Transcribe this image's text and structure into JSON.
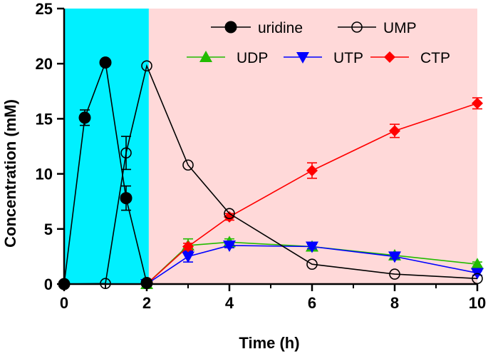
{
  "chart_data": {
    "type": "line",
    "title": "",
    "xlabel": "Time (h)",
    "ylabel": "Concentration (mM)",
    "xlim": [
      0,
      10
    ],
    "ylim": [
      0,
      25
    ],
    "x_ticks": [
      "0",
      "2",
      "4",
      "6",
      "8",
      "10"
    ],
    "y_ticks": [
      "0",
      "5",
      "10",
      "15",
      "20",
      "25"
    ],
    "grid": false,
    "legend": "top-right",
    "background_regions": [
      {
        "x_range": [
          0,
          2.05
        ],
        "color": "#00f0ff"
      },
      {
        "x_range": [
          2.05,
          10
        ],
        "color": "#ffd9d9"
      }
    ],
    "series": [
      {
        "name": "uridine",
        "color": "#000000",
        "marker": "filled-circle",
        "x": [
          0,
          0.5,
          1,
          1.5,
          2
        ],
        "y": [
          0,
          15.1,
          20.1,
          7.8,
          0.1
        ],
        "err": [
          0,
          0.7,
          0,
          1.1,
          0
        ]
      },
      {
        "name": "UMP",
        "color": "#000000",
        "marker": "open-circle",
        "x": [
          0,
          1,
          1.5,
          2,
          3,
          4,
          6,
          8,
          10
        ],
        "y": [
          0,
          0.05,
          11.9,
          19.8,
          10.8,
          6.4,
          1.8,
          0.9,
          0.5
        ],
        "err": [
          0,
          0,
          1.5,
          0,
          0,
          0,
          0,
          0,
          0
        ]
      },
      {
        "name": "UDP",
        "color": "#22bb00",
        "marker": "triangle-up",
        "x": [
          2,
          3,
          4,
          6,
          8,
          10
        ],
        "y": [
          0,
          3.5,
          3.8,
          3.4,
          2.6,
          1.8
        ],
        "err": [
          0,
          0.6,
          0.3,
          0.3,
          0.3,
          0.2
        ]
      },
      {
        "name": "UTP",
        "color": "#0000ff",
        "marker": "triangle-down",
        "x": [
          2,
          3,
          4,
          6,
          8,
          10
        ],
        "y": [
          0,
          2.5,
          3.5,
          3.4,
          2.5,
          1.0
        ],
        "err": [
          0,
          0.5,
          0.2,
          0.2,
          0.2,
          0.2
        ]
      },
      {
        "name": "CTP",
        "color": "#ff0000",
        "marker": "diamond",
        "x": [
          2,
          3,
          4,
          6,
          8,
          10
        ],
        "y": [
          0,
          3.4,
          6.1,
          10.3,
          13.9,
          16.4
        ],
        "err": [
          0,
          0.3,
          0.3,
          0.7,
          0.6,
          0.5
        ]
      }
    ]
  }
}
